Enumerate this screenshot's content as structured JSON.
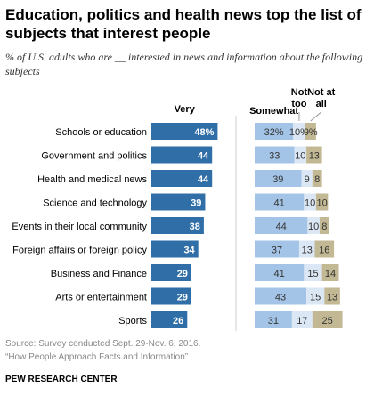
{
  "title": "Education, politics and health news top the list of subjects that interest people",
  "subtitle": "% of U.S. adults who are __ interested in news and information about the following subjects",
  "source": "Source: Survey conducted Sept. 29-Nov. 6, 2016.",
  "source_note": "“How People Approach Facts and Information”",
  "credit": "PEW RESEARCH CENTER",
  "colors": {
    "very": "#2f6ea6",
    "somewhat": "#a3c4e6",
    "not_too": "#dbe7f4",
    "not_at_all": "#c2b893"
  },
  "chart_data": {
    "type": "bar",
    "stacked": true,
    "categories": [
      "Schools or education",
      "Government and politics",
      "Health and medical news",
      "Science and technology",
      "Events in their local community",
      "Foreign affairs or foreign policy",
      "Business and Finance",
      "Arts or entertainment",
      "Sports"
    ],
    "series": [
      {
        "name": "Very",
        "values": [
          48,
          44,
          44,
          39,
          38,
          34,
          29,
          29,
          26
        ]
      },
      {
        "name": "Somewhat",
        "values": [
          32,
          33,
          39,
          41,
          44,
          37,
          41,
          43,
          31
        ]
      },
      {
        "name": "Not too",
        "values": [
          10,
          10,
          9,
          10,
          10,
          13,
          15,
          15,
          17
        ]
      },
      {
        "name": "Not at all",
        "values": [
          9,
          13,
          8,
          10,
          8,
          16,
          14,
          13,
          25
        ]
      }
    ],
    "value_labels": [
      [
        "48%",
        "44",
        "44",
        "39",
        "38",
        "34",
        "29",
        "29",
        "26"
      ],
      [
        "32%",
        "33",
        "39",
        "41",
        "44",
        "37",
        "41",
        "43",
        "31"
      ],
      [
        "10%",
        "10",
        "9",
        "10",
        "10",
        "13",
        "15",
        "15",
        "17"
      ],
      [
        "9%",
        "13",
        "8",
        "10",
        "8",
        "16",
        "14",
        "13",
        "25"
      ]
    ],
    "headers": {
      "very": "Very",
      "somewhat": "Somewhat",
      "not_too": [
        "Not",
        "too"
      ],
      "not_at_all": [
        "Not at",
        "all"
      ]
    }
  }
}
